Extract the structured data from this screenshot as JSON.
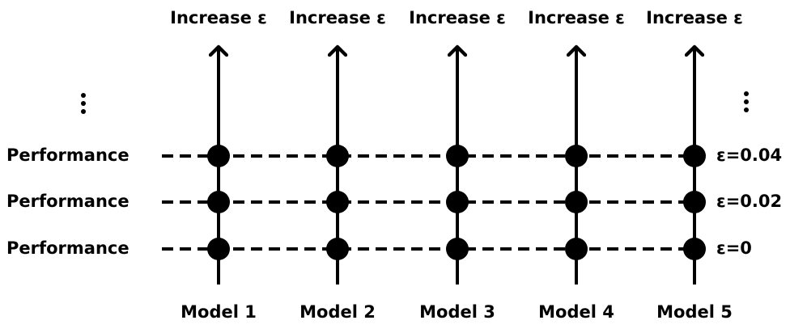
{
  "columns": [
    {
      "top_label": "Increase ε",
      "bottom_label": "Model 1"
    },
    {
      "top_label": "Increase ε",
      "bottom_label": "Model 2"
    },
    {
      "top_label": "Increase ε",
      "bottom_label": "Model 3"
    },
    {
      "top_label": "Increase ε",
      "bottom_label": "Model 4"
    },
    {
      "top_label": "Increase ε",
      "bottom_label": "Model 5"
    }
  ],
  "rows": [
    {
      "left_label": "Performance",
      "right_label": "ε=0.04"
    },
    {
      "left_label": "Performance",
      "right_label": "ε=0.02"
    },
    {
      "left_label": "Performance",
      "right_label": "ε=0"
    }
  ]
}
